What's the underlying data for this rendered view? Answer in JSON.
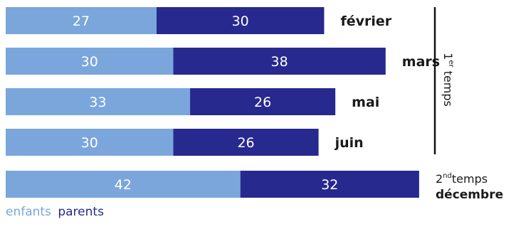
{
  "chart_data": {
    "type": "bar",
    "orientation": "horizontal",
    "stacked": true,
    "categories": [
      "février",
      "mars",
      "mai",
      "juin",
      "décembre"
    ],
    "series": [
      {
        "name": "enfants",
        "values": [
          27,
          30,
          33,
          30,
          42
        ]
      },
      {
        "name": "parents",
        "values": [
          30,
          38,
          26,
          26,
          32
        ]
      }
    ],
    "groups": [
      {
        "label": "1",
        "sup": "er",
        "suffix": " temps",
        "members": [
          "février",
          "mars",
          "mai",
          "juin"
        ]
      },
      {
        "label": "2",
        "sup": "nd",
        "suffix": "temps",
        "members": [
          "décembre"
        ]
      }
    ],
    "title": "",
    "xlabel": "",
    "ylabel": "",
    "legend_position": "bottom-left"
  },
  "colors": {
    "enfants": "#7aa6dc",
    "parents": "#27298f",
    "text": "#1a1a1a",
    "divider": "#111111"
  }
}
